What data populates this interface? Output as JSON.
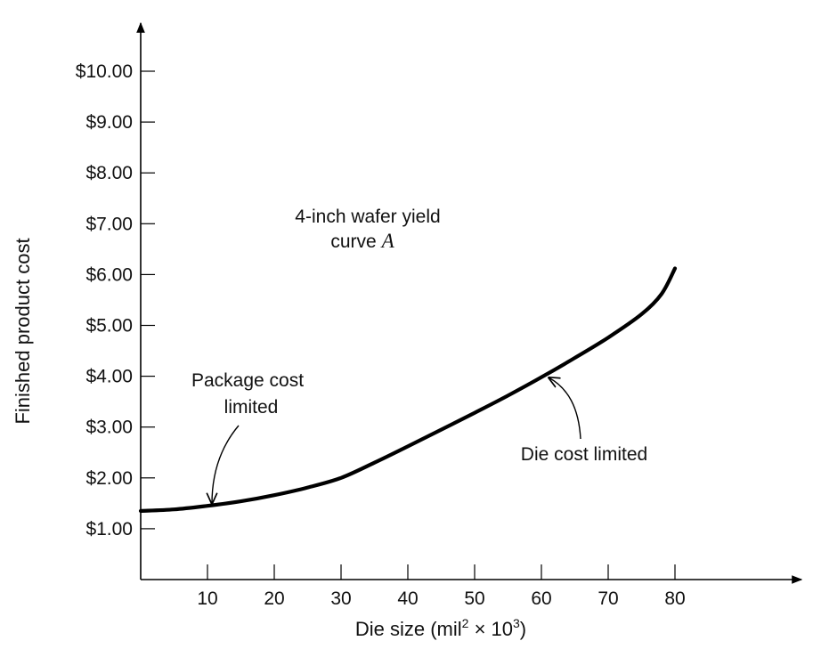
{
  "chart_data": {
    "type": "line",
    "xlabel_main": "Die size (mil",
    "xlabel_sup1": "2",
    "xlabel_mid": " × 10",
    "xlabel_sup2": "3",
    "xlabel_end": ")",
    "ylabel": "Finished product cost",
    "x_ticks": [
      "10",
      "20",
      "30",
      "40",
      "50",
      "60",
      "70",
      "80"
    ],
    "y_ticks": [
      "$1.00",
      "$2.00",
      "$3.00",
      "$4.00",
      "$5.00",
      "$6.00",
      "$7.00",
      "$8.00",
      "$9.00",
      "$10.00"
    ],
    "xlim": [
      0,
      97
    ],
    "ylim": [
      0,
      11
    ],
    "series": [
      {
        "x": [
          0,
          5,
          10,
          15,
          20,
          25,
          30,
          35,
          40,
          45,
          50,
          55,
          60,
          65,
          70,
          75,
          78,
          80
        ],
        "y": [
          1.35,
          1.38,
          1.45,
          1.54,
          1.66,
          1.81,
          2.0,
          2.3,
          2.62,
          2.95,
          3.28,
          3.62,
          3.98,
          4.36,
          4.76,
          5.22,
          5.62,
          6.12
        ]
      }
    ],
    "annotations": {
      "curve_label_line1": "4-inch wafer yield",
      "curve_label_line2": "curve ",
      "curve_label_var": "A",
      "package_line1": "Package cost",
      "package_line2": "limited",
      "die_label": "Die cost limited"
    }
  }
}
